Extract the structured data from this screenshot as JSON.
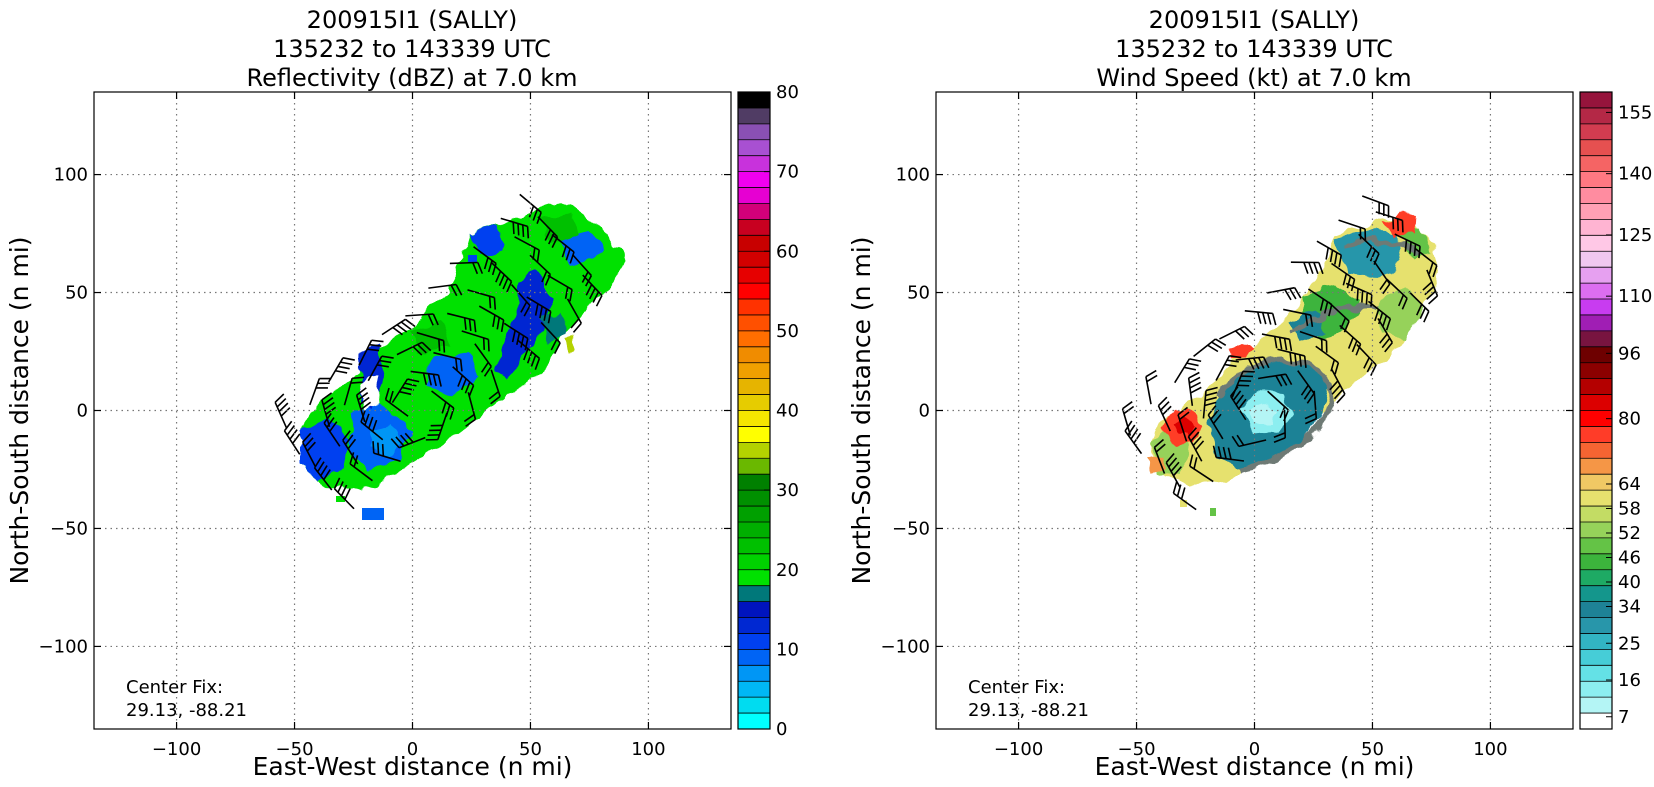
{
  "chart_data": [
    {
      "type": "heatmap",
      "title": [
        "200915I1 (SALLY)",
        "135232 to 143339 UTC",
        "Reflectivity (dBZ) at 7.0 km"
      ],
      "xlabel": "East-West distance (n mi)",
      "ylabel": "North-South distance (n mi)",
      "xlim": [
        -135,
        135
      ],
      "ylim": [
        -135,
        135
      ],
      "xticks": [
        -100,
        -50,
        0,
        50,
        100
      ],
      "yticks": [
        -100,
        -50,
        0,
        50,
        100
      ],
      "grid": true,
      "annotation": [
        "Center Fix:",
        "29.13, -88.21"
      ],
      "colorbar": {
        "vmin": 0,
        "vmax": 80,
        "ticks": [
          0,
          10,
          20,
          30,
          40,
          50,
          60,
          70,
          80
        ],
        "colors": [
          "#00ffff",
          "#00dcf0",
          "#00b8f5",
          "#0096f5",
          "#0064f5",
          "#0040f0",
          "#0028d2",
          "#0014be",
          "#00787a",
          "#00e100",
          "#00d200",
          "#00c000",
          "#00af00",
          "#00a000",
          "#009000",
          "#008000",
          "#6ab800",
          "#b4d200",
          "#ffff00",
          "#f5e600",
          "#e6cc00",
          "#e6b400",
          "#f0a000",
          "#f08c00",
          "#ff6e00",
          "#ff5000",
          "#ff3200",
          "#ff0000",
          "#e60000",
          "#d20000",
          "#c80000",
          "#c80020",
          "#d2007a",
          "#e600d2",
          "#f000f0",
          "#c832dc",
          "#a850d2",
          "#8a50b4",
          "#503c64",
          "#000000"
        ]
      },
      "barbs": true
    },
    {
      "type": "heatmap",
      "title": [
        "200915I1 (SALLY)",
        "135232 to 143339 UTC",
        "Wind Speed (kt) at 7.0 km"
      ],
      "xlabel": "East-West distance (n mi)",
      "ylabel": "North-South distance (n mi)",
      "xlim": [
        -135,
        135
      ],
      "ylim": [
        -135,
        135
      ],
      "xticks": [
        -100,
        -50,
        0,
        50,
        100
      ],
      "yticks": [
        -100,
        -50,
        0,
        50,
        100
      ],
      "grid": true,
      "annotation": [
        "Center Fix:",
        "29.13, -88.21"
      ],
      "colorbar": {
        "vmin": 4,
        "vmax": 160,
        "ticks": [
          7,
          16,
          25,
          34,
          40,
          46,
          52,
          58,
          64,
          80,
          96,
          110,
          125,
          140,
          155
        ],
        "colors": [
          "#ffffff",
          "#b4f5f5",
          "#8ceef0",
          "#64e1e6",
          "#46cdd7",
          "#32b4c3",
          "#2896aa",
          "#1e8296",
          "#14968c",
          "#1eaa64",
          "#3cb43c",
          "#64c346",
          "#96d25a",
          "#c3dc64",
          "#e6e16e",
          "#f0c864",
          "#f59646",
          "#f56432",
          "#ff3c28",
          "#ff0000",
          "#dc0000",
          "#b40000",
          "#8c0000",
          "#6e0000",
          "#781440",
          "#a01eb4",
          "#c83cf0",
          "#dc6ef0",
          "#e6a0f0",
          "#f0c8f0",
          "#ffc8e6",
          "#ffb4d2",
          "#ffa0b4",
          "#ff8ca0",
          "#ff7882",
          "#f56464",
          "#e65050",
          "#d23c50",
          "#b42846",
          "#96143c"
        ]
      },
      "barbs": true
    }
  ]
}
